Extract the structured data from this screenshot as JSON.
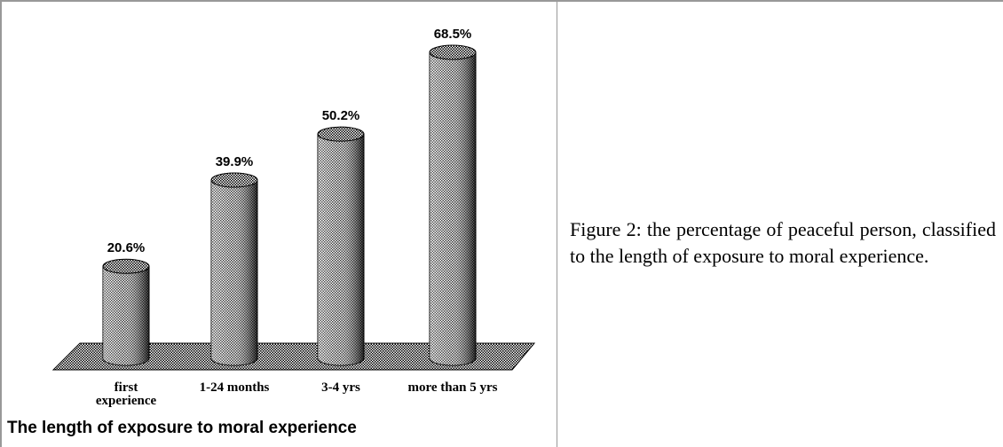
{
  "chart_data": {
    "type": "bar",
    "categories": [
      "first experience",
      "1-24 months",
      "3-4 yrs",
      "more than 5 yrs"
    ],
    "values": [
      20.6,
      39.9,
      50.2,
      68.5
    ],
    "value_labels": [
      "20.6%",
      "39.9%",
      "50.2%",
      "68.5%"
    ],
    "x_label": "The length of exposure to moral experience",
    "color": "#000000"
  },
  "caption": "Figure 2: the percentage of peaceful person, classified to the length of exposure to moral experience."
}
